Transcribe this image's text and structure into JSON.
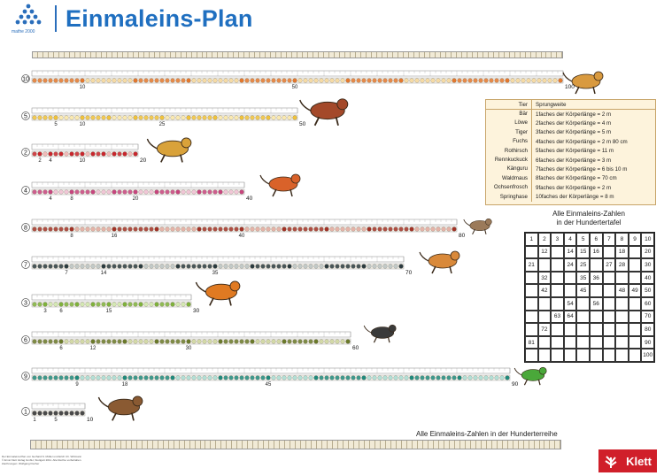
{
  "header": {
    "logo_caption": "mathe 2000",
    "title": "Einmaleins-Plan"
  },
  "rows": [
    {
      "label": "10",
      "factor": 10,
      "color": "#e4782d",
      "light": "#f6d79a",
      "end_label": "100",
      "bottom_ticks": [
        "10",
        "50",
        "100"
      ]
    },
    {
      "label": "5",
      "factor": 5,
      "color": "#f0c23a",
      "light": "#fbe8a6",
      "end_label": "50",
      "bottom_ticks": [
        "5",
        "10",
        "25",
        "50"
      ]
    },
    {
      "label": "2",
      "factor": 2,
      "color": "#c9262c",
      "light": "#f1b1b0",
      "end_label": "20",
      "bottom_ticks": [
        "2",
        "4",
        "10",
        "20"
      ]
    },
    {
      "label": "4",
      "factor": 4,
      "color": "#c8457e",
      "light": "#f0bfd3",
      "end_label": "40",
      "bottom_ticks": [
        "4",
        "8",
        "20",
        "40"
      ]
    },
    {
      "label": "8",
      "factor": 8,
      "color": "#a33326",
      "light": "#e3a99c",
      "end_label": "80",
      "bottom_ticks": [
        "8",
        "16",
        "40",
        "80"
      ]
    },
    {
      "label": "7",
      "factor": 7,
      "color": "#2b3b3f",
      "light": "#b9c2c2",
      "end_label": "70",
      "bottom_ticks": [
        "7",
        "14",
        "35",
        "70"
      ]
    },
    {
      "label": "3",
      "factor": 3,
      "color": "#7fb23b",
      "light": "#cfe7a9",
      "end_label": "30",
      "bottom_ticks": [
        "3",
        "6",
        "15",
        "30"
      ]
    },
    {
      "label": "6",
      "factor": 6,
      "color": "#6b7a2a",
      "light": "#cdd59c",
      "end_label": "60",
      "bottom_ticks": [
        "6",
        "12",
        "30",
        "60"
      ]
    },
    {
      "label": "9",
      "factor": 9,
      "color": "#1f8a7c",
      "light": "#a8dcd2",
      "end_label": "90",
      "bottom_ticks": [
        "9",
        "18",
        "45",
        "90"
      ]
    },
    {
      "label": "1",
      "factor": 1,
      "color": "#4a4a4a",
      "light": "#cfcfcf",
      "end_label": "10",
      "bottom_ticks": [
        "1",
        "5",
        "10"
      ]
    }
  ],
  "animals": [
    {
      "name": "kangaroo-rat-icon",
      "color": "#d99a3f"
    },
    {
      "name": "deer-icon",
      "color": "#a4492a"
    },
    {
      "name": "lion-icon",
      "color": "#d9a23a"
    },
    {
      "name": "fox-icon",
      "color": "#d9622a"
    },
    {
      "name": "mouse-icon",
      "color": "#9b7a5a"
    },
    {
      "name": "kangaroo-icon",
      "color": "#d9893a"
    },
    {
      "name": "tiger-icon",
      "color": "#e07a22"
    },
    {
      "name": "roadrunner-icon",
      "color": "#3a3a3a"
    },
    {
      "name": "frog-icon",
      "color": "#4aa83a"
    },
    {
      "name": "bear-icon",
      "color": "#8a5a32"
    }
  ],
  "jump_table": {
    "head_animal": "Tier",
    "head_distance": "Sprungweite",
    "rows": [
      {
        "animal": "Bär",
        "distance": "1faches der Körperlänge = 2 m"
      },
      {
        "animal": "Löwe",
        "distance": "2faches der Körperlänge = 4 m"
      },
      {
        "animal": "Tiger",
        "distance": "3faches der Körperlänge = 5 m"
      },
      {
        "animal": "Fuchs",
        "distance": "4faches der Körperlänge = 2 m 80 cm"
      },
      {
        "animal": "Rothirsch",
        "distance": "5faches der Körperlänge = 11 m"
      },
      {
        "animal": "Rennkuckuck",
        "distance": "6faches der Körperlänge = 3 m"
      },
      {
        "animal": "Känguru",
        "distance": "7faches der Körperlänge = 6 bis 10 m"
      },
      {
        "animal": "Waldmaus",
        "distance": "8faches der Körperlänge = 70 cm"
      },
      {
        "animal": "Ochsenfrosch",
        "distance": "9faches der Körperlänge = 2 m"
      },
      {
        "animal": "Springhase",
        "distance": "10faches der Körperlänge = 8 m"
      }
    ]
  },
  "hundred_table": {
    "title_line1": "Alle Einmaleins-Zahlen",
    "title_line2": "in der Hundertertafel",
    "cells": [
      "1",
      "2",
      "3",
      "4",
      "5",
      "6",
      "7",
      "8",
      "9",
      "10",
      "",
      "12",
      "",
      "14",
      "15",
      "16",
      "",
      "18",
      "",
      "20",
      "21",
      "",
      "",
      "24",
      "25",
      "",
      "27",
      "28",
      "",
      "30",
      "",
      "32",
      "",
      "",
      "35",
      "36",
      "",
      "",
      "",
      "40",
      "",
      "42",
      "",
      "",
      "45",
      "",
      "",
      "48",
      "49",
      "50",
      "",
      "",
      "",
      "54",
      "",
      "56",
      "",
      "",
      "",
      "60",
      "",
      "",
      "63",
      "64",
      "",
      "",
      "",
      "",
      "",
      "70",
      "",
      "72",
      "",
      "",
      "",
      "",
      "",
      "",
      "",
      "80",
      "81",
      "",
      "",
      "",
      "",
      "",
      "",
      "",
      "",
      "90",
      "",
      "",
      "",
      "",
      "",
      "",
      "",
      "",
      "",
      "100"
    ]
  },
  "hundred_row": {
    "label": "Alle Einmaleins-Zahlen in der Hunderterreihe"
  },
  "footer": {
    "line1": "Der Einmaleins-Plan von Gerhard N. Müller und Erich Ch. Wittmann",
    "line2": "© Ernst Klett Verlag GmbH, Stuttgart 2011. Alle Rechte vorbehalten.",
    "line3": "Zeichnungen: Wolfgang Fischer",
    "brand": "Klett"
  }
}
